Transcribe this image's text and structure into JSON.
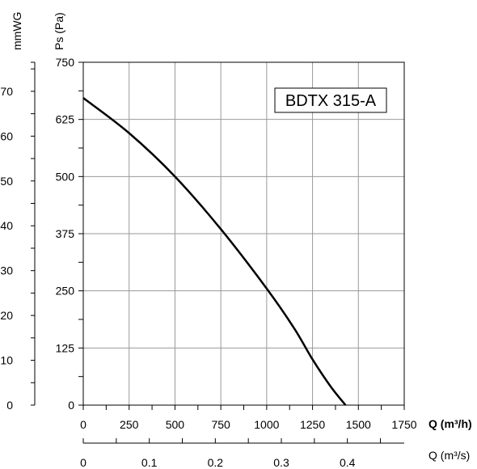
{
  "chart_data": {
    "type": "line",
    "title": "",
    "model_label": "BDTX 315-A",
    "x_axis": {
      "label": "Q (m³/h)",
      "range": [
        0,
        1750
      ],
      "ticks": [
        "0",
        "250",
        "500",
        "750",
        "1000",
        "1250",
        "1500",
        "1750"
      ]
    },
    "x2_axis": {
      "label": "Q (m³/s)",
      "ticks": [
        "0",
        "0.1",
        "0.2",
        "0.3",
        "0.4"
      ]
    },
    "y_axis": {
      "label": "Ps (Pa)",
      "range": [
        0,
        750
      ],
      "ticks": [
        "0",
        "125",
        "250",
        "375",
        "500",
        "625",
        "750"
      ]
    },
    "y2_axis": {
      "label": "mmWG",
      "ticks": [
        "0",
        "10",
        "20",
        "30",
        "40",
        "50",
        "60",
        "70"
      ]
    },
    "grid": true,
    "series": [
      {
        "name": "",
        "x": [
          0,
          250,
          500,
          750,
          1000,
          1150,
          1250,
          1350,
          1430
        ],
        "y": [
          672,
          595,
          500,
          385,
          255,
          168,
          100,
          40,
          0
        ]
      }
    ]
  }
}
